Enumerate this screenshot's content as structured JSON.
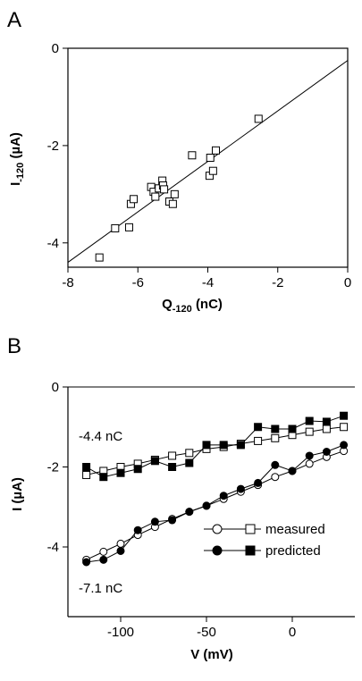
{
  "chart_data": [
    {
      "panel": "A",
      "type": "scatter",
      "xlabel": {
        "main": "Q",
        "sub": "-120",
        "unit": "(nC)"
      },
      "ylabel": {
        "main": "I",
        "sub": "-120",
        "unit": "(µA)"
      },
      "xlim": [
        -8,
        0
      ],
      "ylim": [
        -4.5,
        0
      ],
      "xticks": [
        -8,
        -6,
        -4,
        -2,
        0
      ],
      "yticks": [
        -4,
        -2,
        0
      ],
      "grid": false,
      "marker": "open-square",
      "points": [
        {
          "x": -7.1,
          "y": -4.3
        },
        {
          "x": -6.65,
          "y": -3.7
        },
        {
          "x": -6.25,
          "y": -3.68
        },
        {
          "x": -6.2,
          "y": -3.2
        },
        {
          "x": -6.12,
          "y": -3.1
        },
        {
          "x": -5.62,
          "y": -2.85
        },
        {
          "x": -5.55,
          "y": -2.95
        },
        {
          "x": -5.5,
          "y": -3.05
        },
        {
          "x": -5.4,
          "y": -2.88
        },
        {
          "x": -5.3,
          "y": -2.72
        },
        {
          "x": -5.28,
          "y": -2.82
        },
        {
          "x": -5.25,
          "y": -2.9
        },
        {
          "x": -5.1,
          "y": -3.15
        },
        {
          "x": -5.0,
          "y": -3.2
        },
        {
          "x": -4.95,
          "y": -3.0
        },
        {
          "x": -4.45,
          "y": -2.2
        },
        {
          "x": -3.95,
          "y": -2.62
        },
        {
          "x": -3.93,
          "y": -2.25
        },
        {
          "x": -3.85,
          "y": -2.52
        },
        {
          "x": -3.77,
          "y": -2.1
        },
        {
          "x": -2.55,
          "y": -1.45
        }
      ],
      "fit_line": [
        {
          "x": -8,
          "y": -4.4
        },
        {
          "x": 0,
          "y": -0.25
        }
      ]
    },
    {
      "panel": "B",
      "type": "line",
      "xlabel": {
        "main": "V",
        "unit": "(mV)"
      },
      "ylabel": {
        "main": "I",
        "unit": "(µA)"
      },
      "xlim": [
        -127,
        34
      ],
      "ylim": [
        -5.1,
        0.1
      ],
      "xticks": [
        -100,
        -50,
        0
      ],
      "yticks": [
        -4,
        -2,
        0
      ],
      "grid": false,
      "zero_line": true,
      "legend": {
        "position": "bottom-right",
        "measured": "measured",
        "predicted": "predicted"
      },
      "annotations": {
        "upper": "-4.4 nC",
        "lower": "-7.1 nC"
      },
      "x": [
        -120,
        -110,
        -100,
        -90,
        -80,
        -70,
        -60,
        -50,
        -40,
        -30,
        -20,
        -10,
        0,
        10,
        20,
        30
      ],
      "series": [
        {
          "name": "measured",
          "group": "-4.4 nC",
          "marker": "open-square",
          "values": [
            -2.2,
            -2.1,
            -2.0,
            -1.92,
            -1.82,
            -1.72,
            -1.65,
            -1.55,
            -1.5,
            -1.42,
            -1.35,
            -1.28,
            -1.2,
            -1.12,
            -1.05,
            -1.0
          ]
        },
        {
          "name": "predicted",
          "group": "-4.4 nC",
          "marker": "filled-square",
          "values": [
            -2.0,
            -2.25,
            -2.15,
            -2.05,
            -1.85,
            -2.0,
            -1.9,
            -1.45,
            -1.45,
            -1.45,
            -1.0,
            -1.05,
            -1.05,
            -0.85,
            -0.87,
            -0.72
          ]
        },
        {
          "name": "measured",
          "group": "-7.1 nC",
          "marker": "open-circle",
          "values": [
            -4.32,
            -4.12,
            -3.92,
            -3.7,
            -3.5,
            -3.3,
            -3.12,
            -2.97,
            -2.8,
            -2.62,
            -2.45,
            -2.25,
            -2.1,
            -1.92,
            -1.75,
            -1.6
          ]
        },
        {
          "name": "predicted",
          "group": "-7.1 nC",
          "marker": "filled-circle",
          "values": [
            -4.38,
            -4.32,
            -4.1,
            -3.58,
            -3.37,
            -3.33,
            -3.12,
            -2.97,
            -2.72,
            -2.55,
            -2.4,
            -1.95,
            -2.1,
            -1.72,
            -1.62,
            -1.45
          ]
        }
      ]
    }
  ]
}
